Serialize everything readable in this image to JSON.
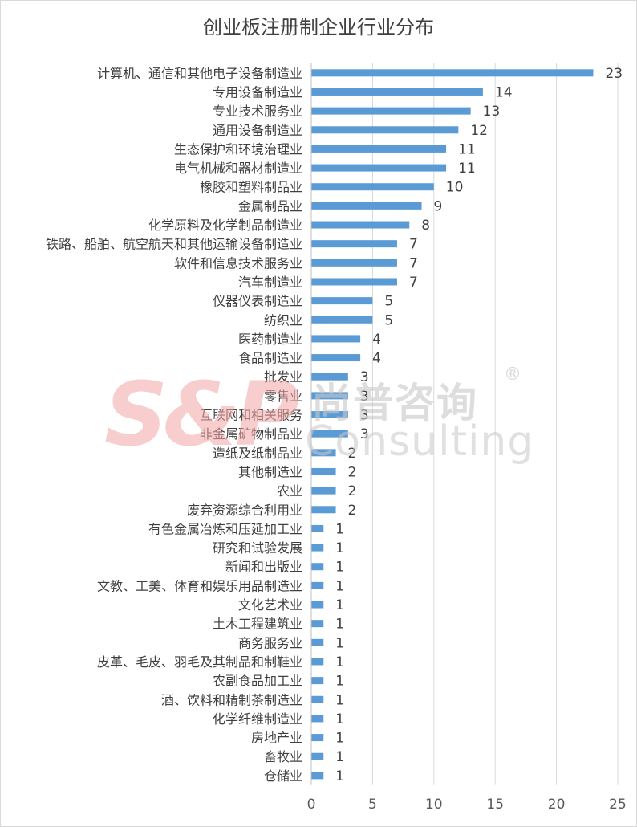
{
  "chart_data": {
    "type": "bar",
    "orientation": "horizontal",
    "title": "创业板注册制企业行业分布",
    "categories": [
      "计算机、通信和其他电子设备制造业",
      "专用设备制造业",
      "专业技术服务业",
      "通用设备制造业",
      "生态保护和环境治理业",
      "电气机械和器材制造业",
      "橡胶和塑料制品业",
      "金属制品业",
      "化学原料及化学制品制造业",
      "铁路、船舶、航空航天和其他运输设备制造业",
      "软件和信息技术服务业",
      "汽车制造业",
      "仪器仪表制造业",
      "纺织业",
      "医药制造业",
      "食品制造业",
      "批发业",
      "零售业",
      "互联网和相关服务",
      "非金属矿物制品业",
      "造纸及纸制品业",
      "其他制造业",
      "农业",
      "废弃资源综合利用业",
      "有色金属冶炼和压延加工业",
      "研究和试验发展",
      "新闻和出版业",
      "文教、工美、体育和娱乐用品制造业",
      "文化艺术业",
      "土木工程建筑业",
      "商务服务业",
      "皮革、毛皮、羽毛及其制品和制鞋业",
      "农副食品加工业",
      "酒、饮料和精制茶制造业",
      "化学纤维制造业",
      "房地产业",
      "畜牧业",
      "仓储业"
    ],
    "values": [
      23,
      14,
      13,
      12,
      11,
      11,
      10,
      9,
      8,
      7,
      7,
      7,
      5,
      5,
      4,
      4,
      3,
      3,
      3,
      3,
      2,
      2,
      2,
      2,
      1,
      1,
      1,
      1,
      1,
      1,
      1,
      1,
      1,
      1,
      1,
      1,
      1,
      1
    ],
    "xlim": [
      0,
      25
    ],
    "xticks": [
      0,
      5,
      10,
      15,
      20,
      25
    ],
    "grid": "vertical",
    "bar_color": "#5b9bd5",
    "data_labels": true
  },
  "watermark": {
    "logo": "S&P",
    "cn": "尚普咨询",
    "reg": "®",
    "en": "Consulting"
  }
}
